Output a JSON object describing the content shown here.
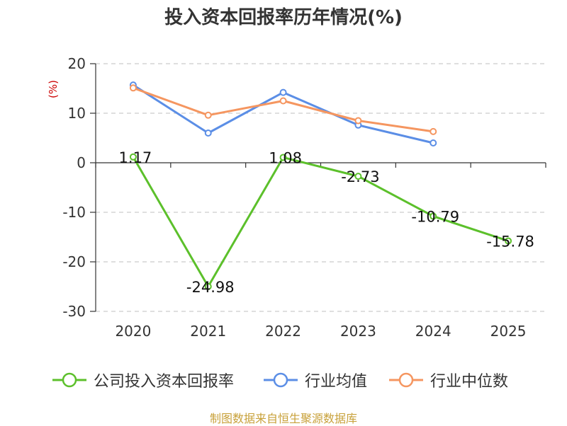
{
  "chart_data": {
    "type": "line",
    "title": "投入资本回报率历年情况(%)",
    "ylabel": "(%)",
    "xlabel": "",
    "categories": [
      "2020",
      "2021",
      "2022",
      "2023",
      "2024",
      "2025"
    ],
    "ylim": [
      -30,
      20
    ],
    "yticks": [
      20,
      10,
      0,
      -10,
      -20,
      -30
    ],
    "grid": true,
    "legend_position": "bottom",
    "series": [
      {
        "name": "公司投入资本回报率",
        "color": "#5cc02b",
        "values": [
          1.17,
          -24.98,
          1.08,
          -2.73,
          -10.79,
          -15.78
        ],
        "labels": [
          "1.17",
          "-24.98",
          "1.08",
          "-2.73",
          "-10.79",
          "-15.78"
        ]
      },
      {
        "name": "行业均值",
        "color": "#5b8ee6",
        "values": [
          15.7,
          6.0,
          14.2,
          7.6,
          4.0,
          null
        ]
      },
      {
        "name": "行业中位数",
        "color": "#f59660",
        "values": [
          15.1,
          9.6,
          12.5,
          8.5,
          6.3,
          null
        ]
      }
    ]
  },
  "footer": {
    "source": "制图数据来自恒生聚源数据库"
  }
}
